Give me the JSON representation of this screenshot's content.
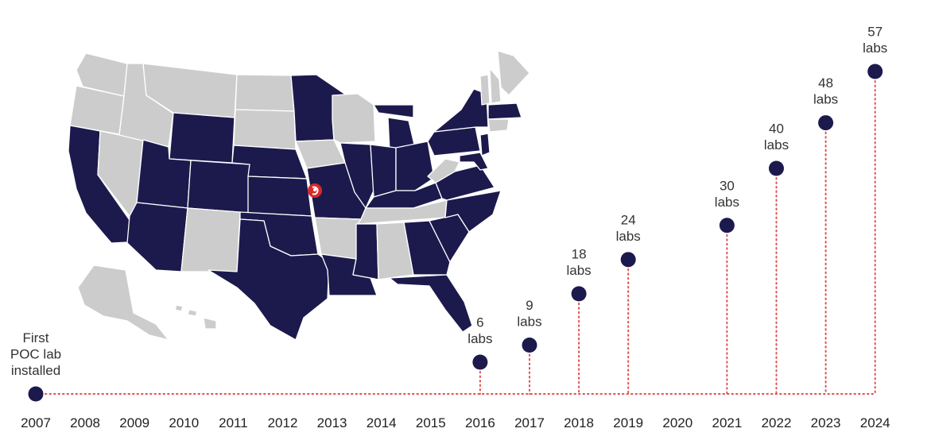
{
  "chart_data": {
    "type": "scatter",
    "title": "",
    "xlabel": "",
    "ylabel": "",
    "x_ticks": [
      "2007",
      "2008",
      "2009",
      "2010",
      "2011",
      "2012",
      "2013",
      "2014",
      "2015",
      "2016",
      "2017",
      "2018",
      "2019",
      "2020",
      "2021",
      "2022",
      "2023",
      "2024"
    ],
    "points": [
      {
        "year": 2007,
        "labs": 1,
        "label": [
          "First",
          "POC lab",
          "installed"
        ]
      },
      {
        "year": 2016,
        "labs": 6,
        "label": [
          "6",
          "labs"
        ]
      },
      {
        "year": 2017,
        "labs": 9,
        "label": [
          "9",
          "labs"
        ]
      },
      {
        "year": 2018,
        "labs": 18,
        "label": [
          "18",
          "labs"
        ]
      },
      {
        "year": 2019,
        "labs": 24,
        "label": [
          "24",
          "labs"
        ]
      },
      {
        "year": 2021,
        "labs": 30,
        "label": [
          "30",
          "labs"
        ]
      },
      {
        "year": 2022,
        "labs": 40,
        "label": [
          "40",
          "labs"
        ]
      },
      {
        "year": 2023,
        "labs": 48,
        "label": [
          "48",
          "labs"
        ]
      },
      {
        "year": 2024,
        "labs": 57,
        "label": [
          "57",
          "labs"
        ]
      }
    ],
    "colors": {
      "marker": "#1c1a4c",
      "connector": "#e05252",
      "state_active": "#1c1a4c",
      "state_inactive": "#cccccc",
      "location_pin": "#d62b2b"
    },
    "map": {
      "icon": "us-states-map",
      "pin_icon": "location-pin-icon"
    }
  }
}
